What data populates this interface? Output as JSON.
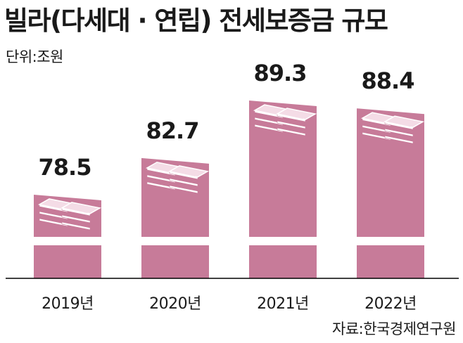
{
  "title": "빌라(다세대 · 연립) 전세보증금 규모",
  "unit_label": "단위:조원",
  "source_label": "자료:한국경제연구원",
  "colors": {
    "bar": "#c77b99",
    "bar_top": "#d996ae",
    "bill_front": "#ffffff",
    "bill_side": "#c77b99",
    "bill_top": "#f4dce6",
    "axis": "#000000"
  },
  "chart_data": {
    "type": "bar",
    "title": "빌라(다세대 · 연립) 전세보증금 규모",
    "ylabel": "단위:조원",
    "categories": [
      "2019년",
      "2020년",
      "2021년",
      "2022년"
    ],
    "values": [
      78.5,
      82.7,
      89.3,
      88.4
    ],
    "value_labels": [
      "78.5",
      "82.7",
      "89.3",
      "88.4"
    ],
    "axis_break": true,
    "grid": false,
    "legend": "none"
  }
}
